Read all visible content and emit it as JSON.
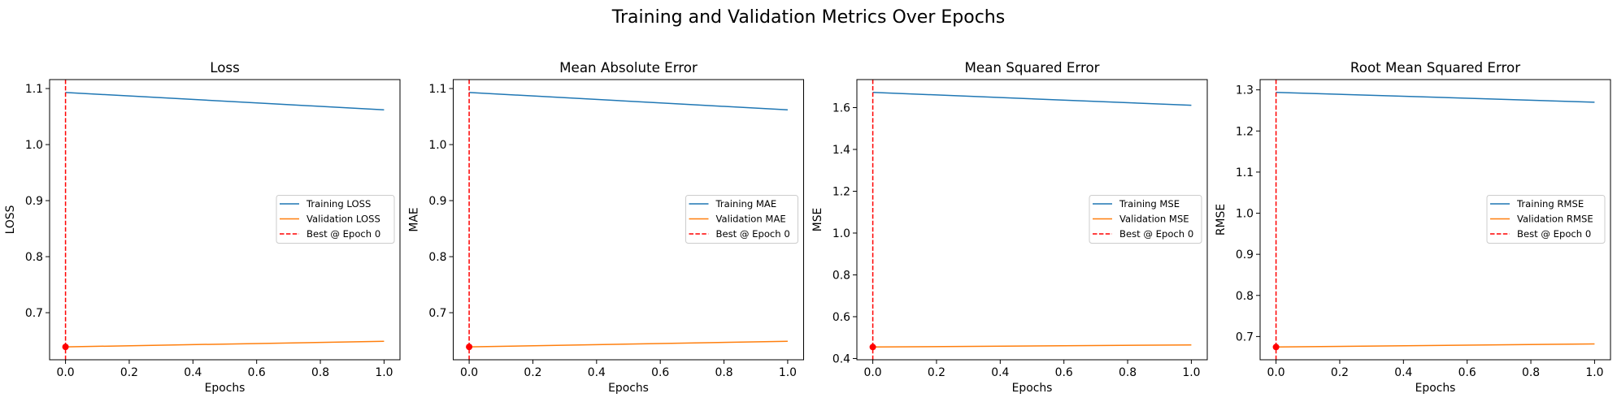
{
  "chart_data": {
    "suptitle": "Training and Validation Metrics Over Epochs",
    "colors": {
      "training": "#1f77b4",
      "validation": "#ff7f0e",
      "best": "#ff0000"
    },
    "charts": [
      {
        "type": "line",
        "title": "Loss",
        "xlabel": "Epochs",
        "ylabel": "LOSS",
        "x": [
          0,
          1
        ],
        "xlim": [
          -0.05,
          1.05
        ],
        "xticks": [
          0.0,
          0.2,
          0.4,
          0.6,
          0.8,
          1.0
        ],
        "xtick_labels": [
          "0.0",
          "0.2",
          "0.4",
          "0.6",
          "0.8",
          "1.0"
        ],
        "ylim": [
          0.616,
          1.116
        ],
        "yticks": [
          0.7,
          0.8,
          0.9,
          1.0,
          1.1
        ],
        "ytick_labels": [
          "0.7",
          "0.8",
          "0.9",
          "1.0",
          "1.1"
        ],
        "series": [
          {
            "name": "Training LOSS",
            "values": [
              1.093,
              1.062
            ]
          },
          {
            "name": "Validation LOSS",
            "values": [
              0.639,
              0.649
            ]
          }
        ],
        "best_epoch": 0,
        "best_value": 0.639,
        "best_label": "Best @ Epoch 0",
        "legend": "center right"
      },
      {
        "type": "line",
        "title": "Mean Absolute Error",
        "xlabel": "Epochs",
        "ylabel": "MAE",
        "x": [
          0,
          1
        ],
        "xlim": [
          -0.05,
          1.05
        ],
        "xticks": [
          0.0,
          0.2,
          0.4,
          0.6,
          0.8,
          1.0
        ],
        "xtick_labels": [
          "0.0",
          "0.2",
          "0.4",
          "0.6",
          "0.8",
          "1.0"
        ],
        "ylim": [
          0.616,
          1.116
        ],
        "yticks": [
          0.7,
          0.8,
          0.9,
          1.0,
          1.1
        ],
        "ytick_labels": [
          "0.7",
          "0.8",
          "0.9",
          "1.0",
          "1.1"
        ],
        "series": [
          {
            "name": "Training MAE",
            "values": [
              1.093,
              1.062
            ]
          },
          {
            "name": "Validation MAE",
            "values": [
              0.639,
              0.649
            ]
          }
        ],
        "best_epoch": 0,
        "best_value": 0.639,
        "best_label": "Best @ Epoch 0",
        "legend": "center right"
      },
      {
        "type": "line",
        "title": "Mean Squared Error",
        "xlabel": "Epochs",
        "ylabel": "MSE",
        "x": [
          0,
          1
        ],
        "xlim": [
          -0.05,
          1.05
        ],
        "xticks": [
          0.0,
          0.2,
          0.4,
          0.6,
          0.8,
          1.0
        ],
        "xtick_labels": [
          "0.0",
          "0.2",
          "0.4",
          "0.6",
          "0.8",
          "1.0"
        ],
        "ylim": [
          0.394,
          1.734
        ],
        "yticks": [
          0.4,
          0.6,
          0.8,
          1.0,
          1.2,
          1.4,
          1.6
        ],
        "ytick_labels": [
          "0.4",
          "0.6",
          "0.8",
          "1.0",
          "1.2",
          "1.4",
          "1.6"
        ],
        "series": [
          {
            "name": "Training MSE",
            "values": [
              1.673,
              1.611
            ]
          },
          {
            "name": "Validation MSE",
            "values": [
              0.455,
              0.465
            ]
          }
        ],
        "best_epoch": 0,
        "best_value": 0.455,
        "best_label": "Best @ Epoch 0",
        "legend": "center right"
      },
      {
        "type": "line",
        "title": "Root Mean Squared Error",
        "xlabel": "Epochs",
        "ylabel": "RMSE",
        "x": [
          0,
          1
        ],
        "xlim": [
          -0.05,
          1.05
        ],
        "xticks": [
          0.0,
          0.2,
          0.4,
          0.6,
          0.8,
          1.0
        ],
        "xtick_labels": [
          "0.0",
          "0.2",
          "0.4",
          "0.6",
          "0.8",
          "1.0"
        ],
        "ylim": [
          0.6435,
          1.325
        ],
        "yticks": [
          0.7,
          0.8,
          0.9,
          1.0,
          1.1,
          1.2,
          1.3
        ],
        "ytick_labels": [
          "0.7",
          "0.8",
          "0.9",
          "1.0",
          "1.1",
          "1.2",
          "1.3"
        ],
        "series": [
          {
            "name": "Training RMSE",
            "values": [
              1.294,
              1.27
            ]
          },
          {
            "name": "Validation RMSE",
            "values": [
              0.6745,
              0.682
            ]
          }
        ],
        "best_epoch": 0,
        "best_value": 0.6745,
        "best_label": "Best @ Epoch 0",
        "legend": "center right"
      }
    ]
  }
}
